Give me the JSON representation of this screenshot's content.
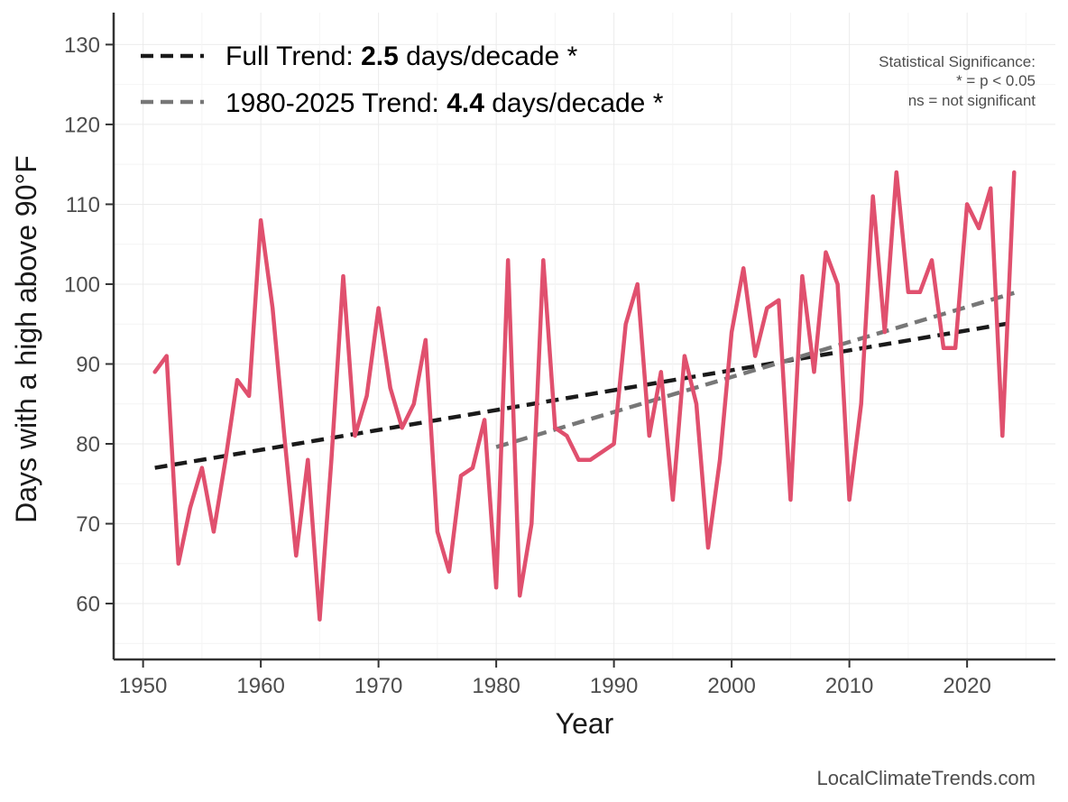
{
  "chart_data": {
    "type": "line",
    "ylabel": "Days with a high above 90°F",
    "xlabel": "Year",
    "xlim": [
      1947.5,
      2027.5
    ],
    "ylim": [
      53,
      134
    ],
    "xticks": [
      1950,
      1960,
      1970,
      1980,
      1990,
      2000,
      2010,
      2020
    ],
    "yticks": [
      60,
      70,
      80,
      90,
      100,
      110,
      120,
      130
    ],
    "grid": true,
    "colors": {
      "series": "#e0506e",
      "full_trend": "#1a1a1a",
      "recent_trend": "#777777"
    },
    "series": [
      {
        "name": "Days above 90°F",
        "x": [
          1951,
          1952,
          1953,
          1954,
          1955,
          1956,
          1957,
          1958,
          1959,
          1960,
          1961,
          1962,
          1963,
          1964,
          1965,
          1966,
          1967,
          1968,
          1969,
          1970,
          1971,
          1972,
          1973,
          1974,
          1975,
          1976,
          1977,
          1978,
          1979,
          1980,
          1981,
          1982,
          1983,
          1984,
          1985,
          1986,
          1987,
          1988,
          1989,
          1990,
          1991,
          1992,
          1993,
          1994,
          1995,
          1996,
          1997,
          1998,
          1999,
          2000,
          2001,
          2002,
          2003,
          2004,
          2005,
          2006,
          2007,
          2008,
          2009,
          2010,
          2011,
          2012,
          2013,
          2014,
          2015,
          2016,
          2017,
          2018,
          2019,
          2020,
          2021,
          2022,
          2023,
          2024
        ],
        "values": [
          89,
          91,
          65,
          72,
          77,
          69,
          78,
          88,
          86,
          108,
          97,
          81,
          66,
          78,
          58,
          78,
          101,
          81,
          86,
          97,
          87,
          82,
          85,
          93,
          69,
          64,
          76,
          77,
          83,
          62,
          103,
          61,
          70,
          103,
          82,
          81,
          78,
          78,
          79,
          80,
          95,
          100,
          81,
          89,
          73,
          91,
          85,
          67,
          78,
          94,
          102,
          91,
          97,
          98,
          73,
          101,
          89,
          104,
          100,
          73,
          85,
          111,
          94,
          114,
          99,
          99,
          103,
          92,
          92,
          110,
          107,
          112,
          81,
          114
        ]
      }
    ],
    "trends": [
      {
        "name": "Full Trend",
        "x": [
          1951,
          2024
        ],
        "y": [
          77.0,
          95.2
        ]
      },
      {
        "name": "1980-2025 Trend",
        "x": [
          1980,
          2024
        ],
        "y": [
          79.6,
          98.9
        ]
      }
    ]
  },
  "legend": {
    "full_prefix": "Full Trend: ",
    "full_value": "2.5",
    "full_suffix": " days/decade *",
    "recent_prefix": "1980-2025 Trend: ",
    "recent_value": "4.4",
    "recent_suffix": " days/decade *"
  },
  "significance_note": {
    "line1": "Statistical Significance:",
    "line2": "* = p < 0.05",
    "line3": "ns = not significant"
  },
  "credit": "LocalClimateTrends.com"
}
